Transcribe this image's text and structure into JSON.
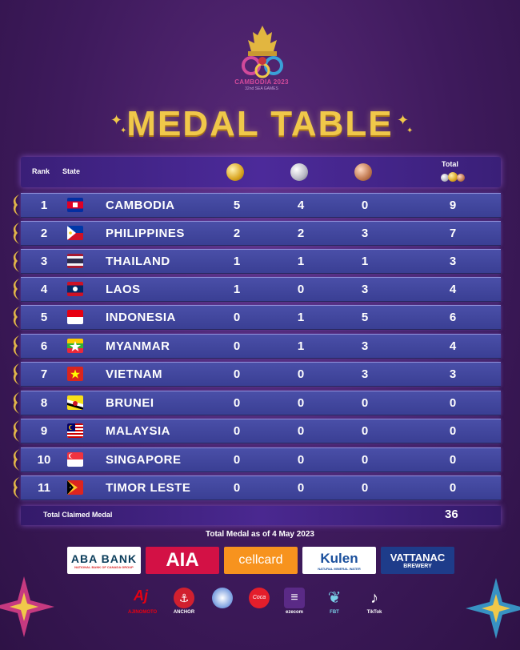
{
  "logo": {
    "name": "CAMBODIA 2023",
    "sub": "32nd SEA GAMES"
  },
  "title": "MEDAL TABLE",
  "header": {
    "rank": "Rank",
    "state": "State",
    "total": "Total"
  },
  "rows": [
    {
      "rank": "1",
      "country": "CAMBODIA",
      "gold": "5",
      "silver": "4",
      "bronze": "0",
      "total": "9"
    },
    {
      "rank": "2",
      "country": "PHILIPPINES",
      "gold": "2",
      "silver": "2",
      "bronze": "3",
      "total": "7"
    },
    {
      "rank": "3",
      "country": "THAILAND",
      "gold": "1",
      "silver": "1",
      "bronze": "1",
      "total": "3"
    },
    {
      "rank": "4",
      "country": "LAOS",
      "gold": "1",
      "silver": "0",
      "bronze": "3",
      "total": "4"
    },
    {
      "rank": "5",
      "country": "INDONESIA",
      "gold": "0",
      "silver": "1",
      "bronze": "5",
      "total": "6"
    },
    {
      "rank": "6",
      "country": "MYANMAR",
      "gold": "0",
      "silver": "1",
      "bronze": "3",
      "total": "4"
    },
    {
      "rank": "7",
      "country": "VIETNAM",
      "gold": "0",
      "silver": "0",
      "bronze": "3",
      "total": "3"
    },
    {
      "rank": "8",
      "country": "BRUNEI",
      "gold": "0",
      "silver": "0",
      "bronze": "0",
      "total": "0"
    },
    {
      "rank": "9",
      "country": "MALAYSIA",
      "gold": "0",
      "silver": "0",
      "bronze": "0",
      "total": "0"
    },
    {
      "rank": "10",
      "country": "SINGAPORE",
      "gold": "0",
      "silver": "0",
      "bronze": "0",
      "total": "0"
    },
    {
      "rank": "11",
      "country": "TIMOR LESTE",
      "gold": "0",
      "silver": "0",
      "bronze": "0",
      "total": "0"
    }
  ],
  "total_claimed": {
    "label": "Total Claimed Medal",
    "value": "36"
  },
  "as_of": "Total Medal as of 4 May 2023",
  "sponsors": [
    {
      "name": "ABA BANK",
      "sub": "NATIONAL BANK OF CANADA GROUP"
    },
    {
      "name": "AIA"
    },
    {
      "name": "cellcard"
    },
    {
      "name": "Kulen",
      "sub": "NATURAL MINERAL WATER"
    },
    {
      "name": "VATTANAC",
      "sub": "BREWERY"
    }
  ],
  "small_sponsors": [
    "AJINOMOTO",
    "ANCHOR",
    "",
    "",
    "ezecom",
    "FBT",
    "TikTok"
  ],
  "colors": {
    "title": "#f0c84a",
    "row": "#3f449a",
    "header": "#3a1f78",
    "background": "#3e1a5c"
  }
}
